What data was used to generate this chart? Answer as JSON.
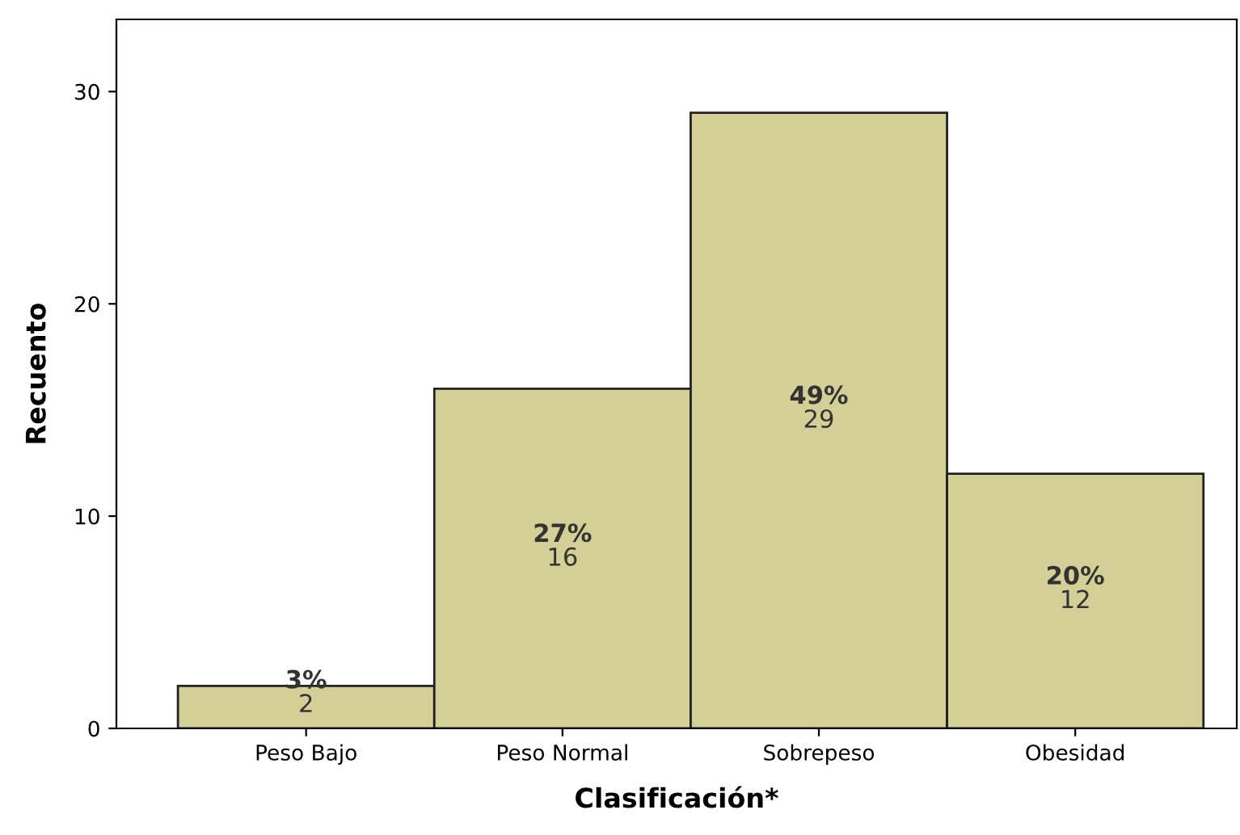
{
  "chart_data": {
    "type": "bar",
    "xlabel": "Clasificación*",
    "ylabel": "Recuento",
    "categories": [
      "Peso Bajo",
      "Peso Normal",
      "Sobrepeso",
      "Obesidad"
    ],
    "values": [
      2,
      16,
      29,
      12
    ],
    "value_labels": [
      "3%\n2",
      "27%\n16",
      "49%\n29",
      "20%\n12"
    ],
    "color": "#d3cf96",
    "ylim": [
      0,
      33.4
    ],
    "yticks": [
      0,
      10,
      20,
      30
    ],
    "grid": false,
    "legend": false
  }
}
